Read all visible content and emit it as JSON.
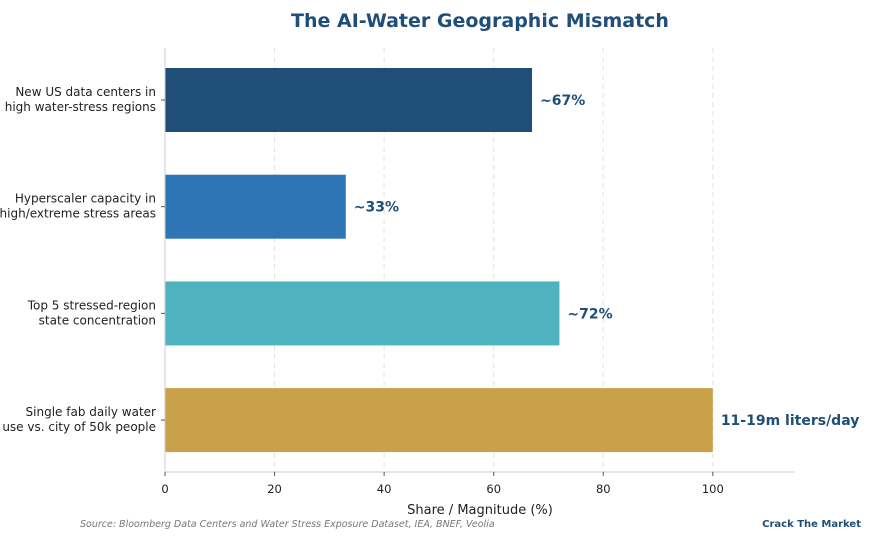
{
  "chart_data": {
    "type": "bar",
    "orientation": "horizontal",
    "title": "The AI-Water Geographic Mismatch",
    "xlabel": "Share / Magnitude (%)",
    "ylabel": "",
    "xlim": [
      0,
      115
    ],
    "xticks": [
      0,
      20,
      40,
      60,
      80,
      100
    ],
    "grid": "x-dashed",
    "categories": [
      [
        "New US data centers in",
        "high water-stress regions"
      ],
      [
        "Hyperscaler capacity in",
        "high/extreme stress areas"
      ],
      [
        "Top 5 stressed-region",
        "state concentration"
      ],
      [
        "Single fab daily water",
        "use vs. city of 50k people"
      ]
    ],
    "values": [
      67,
      33,
      72,
      100
    ],
    "data_labels": [
      "~67%",
      "~33%",
      "~72%",
      "11-19m liters/day"
    ],
    "colors": [
      "#1f4e79",
      "#2e75b6",
      "#4fb3bf",
      "#c9a14a"
    ]
  },
  "footer": {
    "source": "Source: Bloomberg Data Centers and Water Stress Exposure Dataset, IEA, BNEF, Veolia",
    "brand": "Crack The Market"
  }
}
